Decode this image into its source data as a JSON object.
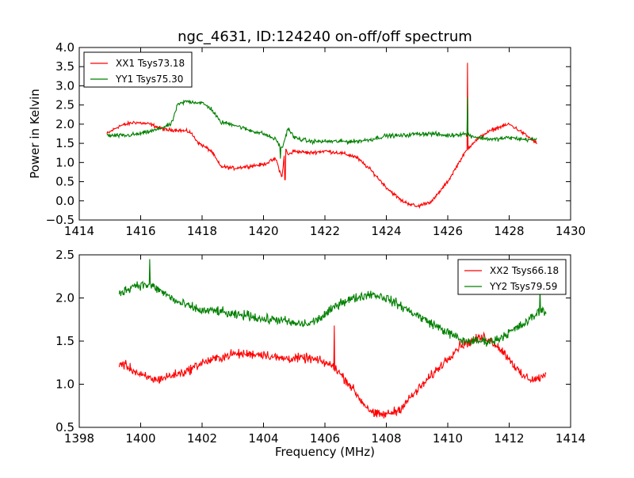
{
  "chart_data": [
    {
      "type": "line",
      "title": "ngc_4631, ID:124240 on-off/off spectrum",
      "xlabel": "",
      "ylabel": "Power in Kelvin",
      "xlim": [
        1414,
        1430
      ],
      "ylim": [
        -0.5,
        4.0
      ],
      "xticks": [
        "1414",
        "1416",
        "1418",
        "1420",
        "1422",
        "1424",
        "1426",
        "1428",
        "1430"
      ],
      "yticks": [
        "−0.5",
        "0.0",
        "0.5",
        "1.0",
        "1.5",
        "2.0",
        "2.5",
        "3.0",
        "3.5",
        "4.0"
      ],
      "legend_position": "top-left",
      "grid": false,
      "series": [
        {
          "name": "XX1 Tsys73.18",
          "color": "#ff0000",
          "x": [
            1414.9,
            1415.3,
            1415.8,
            1416.3,
            1416.8,
            1417.2,
            1417.6,
            1417.9,
            1418.3,
            1418.6,
            1419.0,
            1419.5,
            1420.0,
            1420.4,
            1420.6,
            1420.7,
            1420.8,
            1421.0,
            1421.5,
            1422.0,
            1422.5,
            1423.0,
            1423.5,
            1424.0,
            1424.5,
            1425.0,
            1425.5,
            1426.0,
            1426.4,
            1426.6,
            1426.8,
            1427.2,
            1427.6,
            1428.0,
            1428.4,
            1428.9
          ],
          "y": [
            1.75,
            1.95,
            2.05,
            2.0,
            1.85,
            1.85,
            1.8,
            1.5,
            1.3,
            0.9,
            0.85,
            0.9,
            0.95,
            1.1,
            0.6,
            1.4,
            1.2,
            1.3,
            1.25,
            1.3,
            1.25,
            1.15,
            0.8,
            0.35,
            0.0,
            -0.15,
            0.0,
            0.5,
            1.05,
            1.3,
            1.5,
            1.75,
            1.9,
            2.0,
            1.8,
            1.5
          ],
          "spikes": [
            {
              "x": 1426.65,
              "y": 3.6
            },
            {
              "x": 1420.7,
              "y": 0.55
            }
          ]
        },
        {
          "name": "YY1 Tsys75.30",
          "color": "#008000",
          "x": [
            1414.9,
            1415.5,
            1416.0,
            1416.5,
            1417.0,
            1417.2,
            1417.5,
            1418.0,
            1418.3,
            1418.6,
            1419.0,
            1419.5,
            1420.0,
            1420.4,
            1420.6,
            1420.8,
            1421.0,
            1421.5,
            1422.0,
            1422.5,
            1423.0,
            1423.5,
            1424.0,
            1424.5,
            1425.0,
            1425.5,
            1426.0,
            1426.5,
            1427.0,
            1427.5,
            1428.0,
            1428.5,
            1428.9
          ],
          "y": [
            1.7,
            1.7,
            1.75,
            1.85,
            2.0,
            2.5,
            2.6,
            2.55,
            2.4,
            2.05,
            2.0,
            1.85,
            1.75,
            1.6,
            1.35,
            1.9,
            1.65,
            1.55,
            1.55,
            1.55,
            1.55,
            1.6,
            1.7,
            1.7,
            1.75,
            1.75,
            1.7,
            1.75,
            1.65,
            1.6,
            1.65,
            1.6,
            1.6
          ],
          "spikes": [
            {
              "x": 1426.65,
              "y": 2.7
            },
            {
              "x": 1420.55,
              "y": 1.1
            }
          ]
        }
      ]
    },
    {
      "type": "line",
      "title": "",
      "xlabel": "Frequency (MHz)",
      "ylabel": "",
      "xlim": [
        1398,
        1414
      ],
      "ylim": [
        0.5,
        2.5
      ],
      "xticks": [
        "1398",
        "1400",
        "1402",
        "1404",
        "1406",
        "1408",
        "1410",
        "1412",
        "1414"
      ],
      "yticks": [
        "0.5",
        "1.0",
        "1.5",
        "2.0",
        "2.5"
      ],
      "legend_position": "top-right",
      "grid": false,
      "series": [
        {
          "name": "XX2 Tsys66.18",
          "color": "#ff0000",
          "x": [
            1399.3,
            1399.6,
            1400.0,
            1400.5,
            1401.0,
            1401.5,
            1402.0,
            1402.5,
            1403.0,
            1403.5,
            1404.0,
            1404.5,
            1405.0,
            1405.5,
            1406.0,
            1406.3,
            1406.8,
            1407.2,
            1407.6,
            1408.0,
            1408.4,
            1408.8,
            1409.2,
            1409.6,
            1410.0,
            1410.4,
            1410.8,
            1411.2,
            1411.6,
            1412.0,
            1412.4,
            1412.8,
            1413.2
          ],
          "y": [
            1.25,
            1.2,
            1.1,
            1.05,
            1.1,
            1.15,
            1.25,
            1.3,
            1.35,
            1.35,
            1.35,
            1.3,
            1.3,
            1.3,
            1.25,
            1.2,
            1.0,
            0.8,
            0.65,
            0.65,
            0.7,
            0.85,
            1.0,
            1.15,
            1.3,
            1.45,
            1.5,
            1.55,
            1.45,
            1.3,
            1.1,
            1.05,
            1.1
          ],
          "spikes": [
            {
              "x": 1406.3,
              "y": 1.68
            }
          ]
        },
        {
          "name": "YY2 Tsys79.59",
          "color": "#008000",
          "x": [
            1399.3,
            1399.8,
            1400.3,
            1400.8,
            1401.2,
            1401.6,
            1402.0,
            1402.5,
            1403.0,
            1403.5,
            1404.0,
            1404.5,
            1405.0,
            1405.5,
            1406.0,
            1406.5,
            1407.0,
            1407.5,
            1408.0,
            1408.5,
            1409.0,
            1409.5,
            1410.0,
            1410.5,
            1411.0,
            1411.5,
            1412.0,
            1412.5,
            1413.0,
            1413.2
          ],
          "y": [
            2.05,
            2.15,
            2.15,
            2.05,
            1.95,
            1.9,
            1.85,
            1.85,
            1.8,
            1.8,
            1.75,
            1.75,
            1.7,
            1.7,
            1.8,
            1.95,
            2.0,
            2.05,
            2.0,
            1.9,
            1.8,
            1.7,
            1.6,
            1.5,
            1.5,
            1.5,
            1.6,
            1.7,
            1.85,
            1.85
          ],
          "spikes": [
            {
              "x": 1400.3,
              "y": 2.45
            },
            {
              "x": 1413.0,
              "y": 2.1
            }
          ]
        }
      ]
    }
  ]
}
